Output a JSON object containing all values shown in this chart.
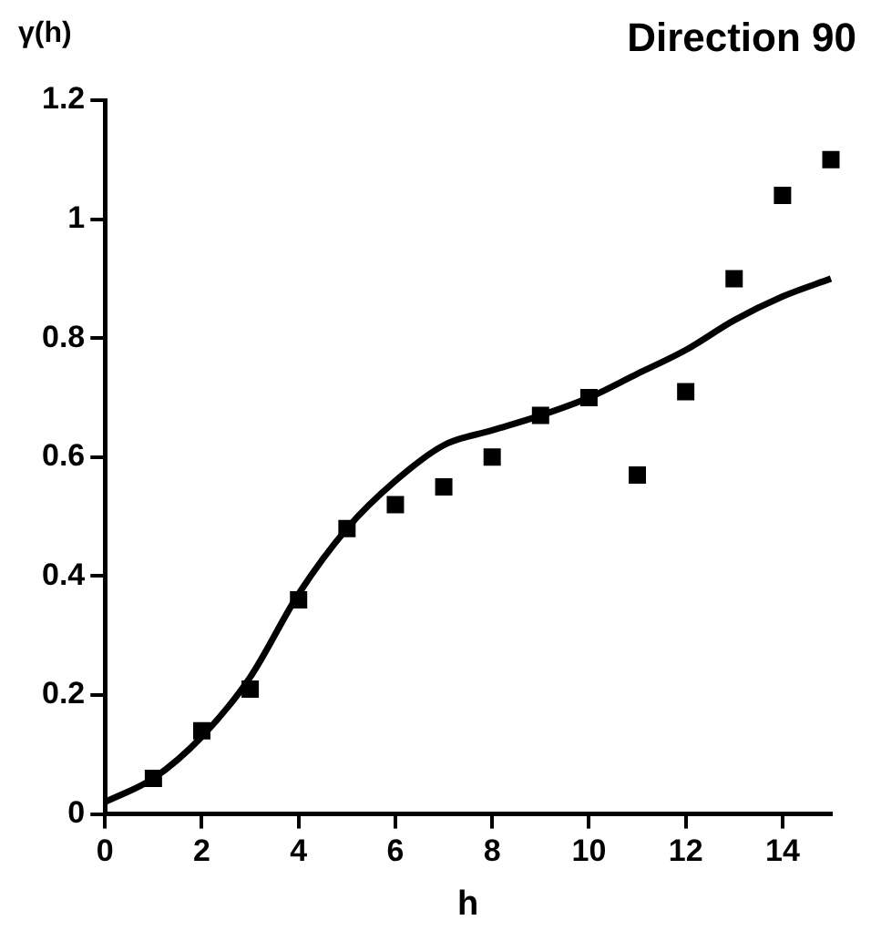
{
  "chart_data": {
    "type": "scatter",
    "title": "Direction 90",
    "xlabel": "h",
    "ylabel": "γ(h)",
    "xlim": [
      0,
      15
    ],
    "xticks": [
      0,
      2,
      4,
      6,
      8,
      10,
      12,
      14
    ],
    "ylim": [
      0,
      1.2
    ],
    "yticks": [
      0,
      0.2,
      0.4,
      0.6,
      0.8,
      1,
      1.2
    ],
    "grid": false,
    "legend": false,
    "series": [
      {
        "color": "#000000",
        "marker": "square",
        "x": [
          1,
          2,
          3,
          4,
          5,
          6,
          7,
          8,
          9,
          10,
          11,
          12,
          13,
          14,
          15
        ],
        "values": [
          0.06,
          0.14,
          0.21,
          0.36,
          0.48,
          0.52,
          0.55,
          0.6,
          0.67,
          0.7,
          0.57,
          0.71,
          0.9,
          1.04,
          1.1
        ]
      },
      {
        "type": "line",
        "color": "#000000",
        "marker": "none",
        "line_style": "solid",
        "x": [
          0,
          1,
          2,
          3,
          4,
          5,
          6,
          7,
          8,
          9,
          10,
          11,
          12,
          13,
          14,
          15
        ],
        "values": [
          0.02,
          0.06,
          0.13,
          0.23,
          0.37,
          0.48,
          0.56,
          0.62,
          0.645,
          0.67,
          0.7,
          0.74,
          0.78,
          0.83,
          0.87,
          0.9
        ]
      }
    ]
  }
}
